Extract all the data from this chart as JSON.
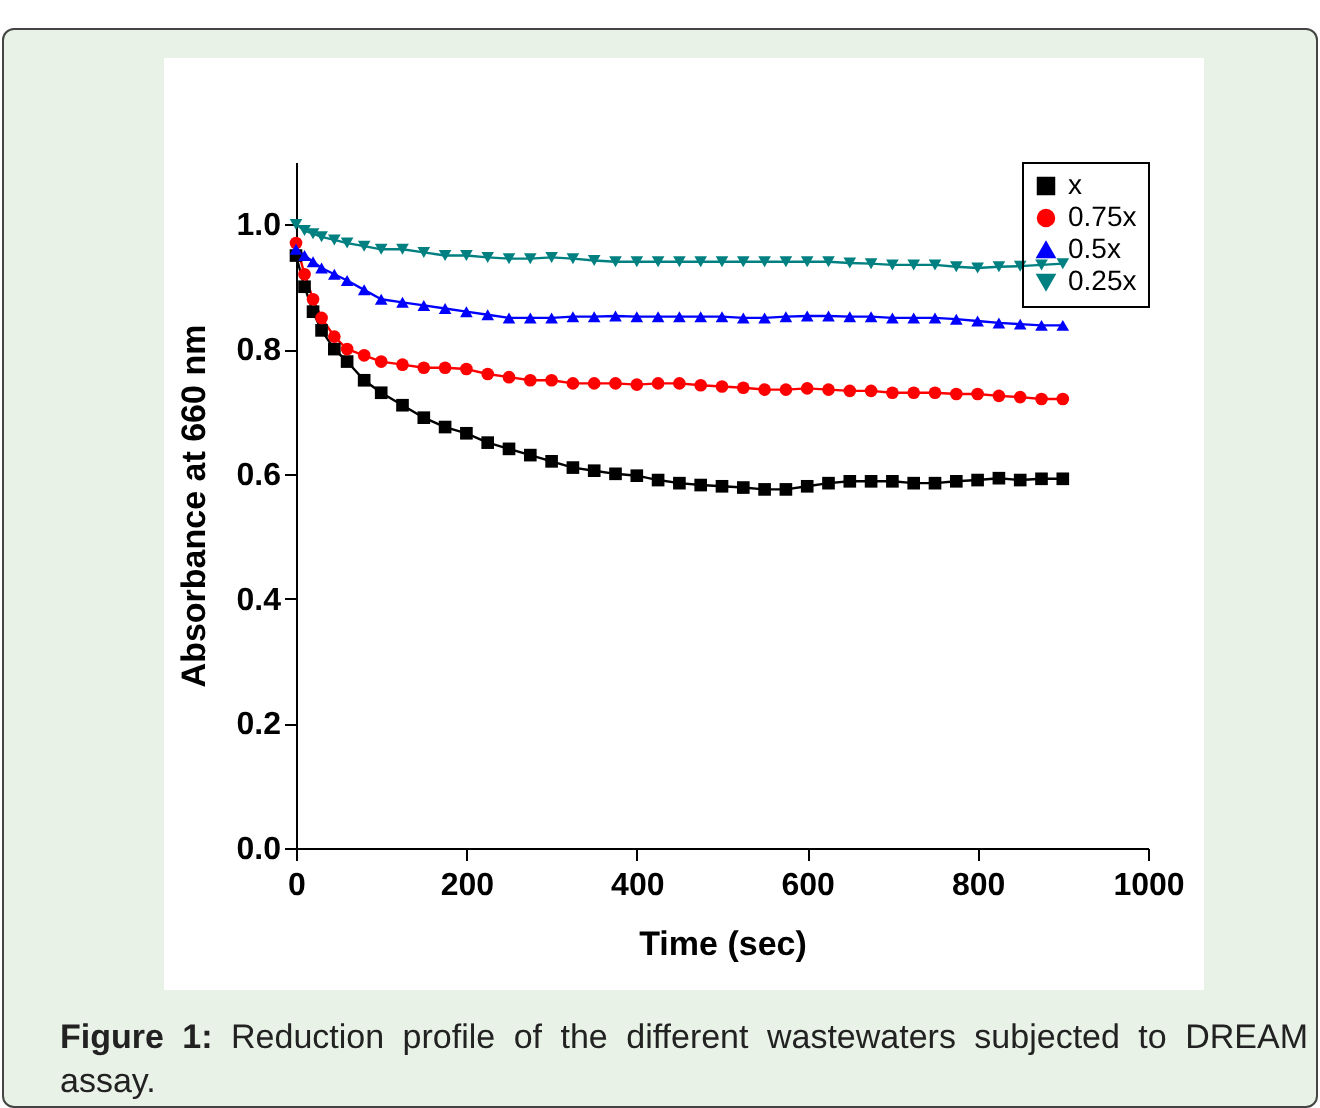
{
  "chart_data": {
    "type": "line",
    "xlabel": "Time (sec)",
    "ylabel": "Absorbance at 660 nm",
    "annotations": [
      "Figure 1: Reduction profile of the different wastewaters subjected to DREAM assay."
    ],
    "x": [
      0,
      10,
      20,
      30,
      45,
      60,
      80,
      100,
      125,
      150,
      175,
      200,
      225,
      250,
      275,
      300,
      325,
      350,
      375,
      400,
      425,
      450,
      475,
      500,
      525,
      550,
      575,
      600,
      625,
      650,
      675,
      700,
      725,
      750,
      775,
      800,
      825,
      850,
      875,
      900
    ],
    "series": [
      {
        "name": "x",
        "color": "#000000",
        "marker": "square",
        "values": [
          0.95,
          0.9,
          0.86,
          0.83,
          0.8,
          0.78,
          0.75,
          0.73,
          0.71,
          0.69,
          0.675,
          0.665,
          0.65,
          0.64,
          0.63,
          0.62,
          0.61,
          0.605,
          0.6,
          0.597,
          0.59,
          0.585,
          0.582,
          0.58,
          0.578,
          0.575,
          0.575,
          0.58,
          0.585,
          0.588,
          0.588,
          0.588,
          0.585,
          0.585,
          0.588,
          0.59,
          0.593,
          0.59,
          0.592,
          0.592
        ]
      },
      {
        "name": "0.75x",
        "color": "#ff0000",
        "marker": "circle",
        "values": [
          0.97,
          0.92,
          0.88,
          0.85,
          0.82,
          0.8,
          0.79,
          0.78,
          0.775,
          0.77,
          0.77,
          0.768,
          0.76,
          0.755,
          0.75,
          0.75,
          0.745,
          0.745,
          0.745,
          0.743,
          0.745,
          0.745,
          0.742,
          0.74,
          0.738,
          0.735,
          0.735,
          0.737,
          0.735,
          0.733,
          0.733,
          0.73,
          0.73,
          0.73,
          0.728,
          0.728,
          0.725,
          0.723,
          0.72,
          0.72
        ]
      },
      {
        "name": "0.5x",
        "color": "#0000ff",
        "marker": "triangle",
        "values": [
          0.96,
          0.95,
          0.94,
          0.93,
          0.92,
          0.91,
          0.895,
          0.88,
          0.875,
          0.87,
          0.865,
          0.86,
          0.855,
          0.85,
          0.85,
          0.85,
          0.852,
          0.852,
          0.853,
          0.852,
          0.852,
          0.852,
          0.852,
          0.852,
          0.85,
          0.85,
          0.852,
          0.853,
          0.853,
          0.852,
          0.852,
          0.85,
          0.85,
          0.85,
          0.848,
          0.845,
          0.842,
          0.84,
          0.838,
          0.838
        ]
      },
      {
        "name": "0.25x",
        "color": "#008080",
        "marker": "triangle-down",
        "values": [
          1.0,
          0.99,
          0.985,
          0.98,
          0.975,
          0.97,
          0.965,
          0.96,
          0.96,
          0.955,
          0.95,
          0.95,
          0.947,
          0.945,
          0.945,
          0.947,
          0.945,
          0.942,
          0.94,
          0.94,
          0.94,
          0.94,
          0.94,
          0.94,
          0.94,
          0.94,
          0.94,
          0.94,
          0.94,
          0.938,
          0.937,
          0.935,
          0.935,
          0.935,
          0.932,
          0.93,
          0.932,
          0.933,
          0.935,
          0.937
        ]
      }
    ],
    "xlim": [
      0,
      1000
    ],
    "xticks": [
      0,
      200,
      400,
      600,
      800,
      1000
    ],
    "ylim": [
      0,
      1.1
    ],
    "yticks": [
      {
        "value": 0,
        "label": "0.0"
      },
      0.2,
      0.4,
      0.6,
      0.8,
      {
        "value": 1,
        "label": "1.0"
      }
    ],
    "legend": "top right",
    "grid": false,
    "line_style": "solid"
  }
}
